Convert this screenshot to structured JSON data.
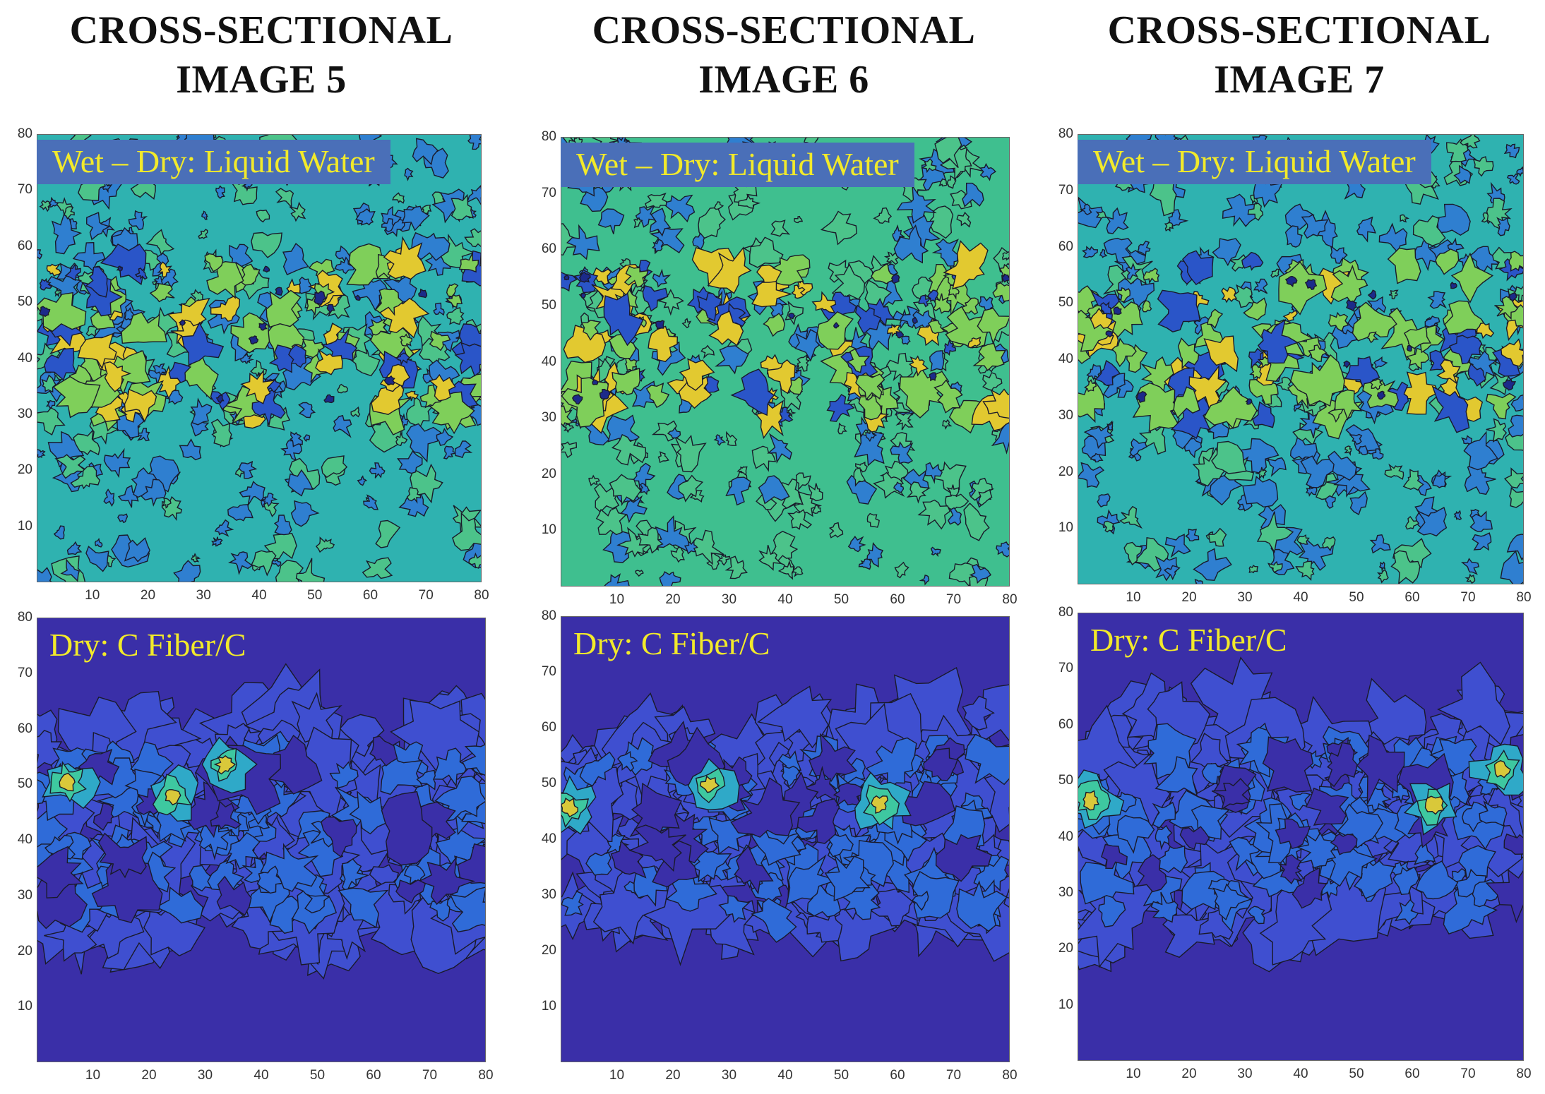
{
  "headings": [
    {
      "line1": "CROSS-SECTIONAL",
      "line2": "IMAGE 5"
    },
    {
      "line1": "CROSS-SECTIONAL",
      "line2": "IMAGE 6"
    },
    {
      "line1": "CROSS-SECTIONAL",
      "line2": "IMAGE 7"
    }
  ],
  "panel_labels": {
    "top": "Wet – Dry: Liquid Water",
    "bottom": "Dry: C Fiber/C"
  },
  "colors": {
    "label_text": "#f2ea2a",
    "label_box": "#4a6fb8",
    "water_base": "#2fb2b0",
    "water_low": "#2f7fd0",
    "water_high": "#e2c930",
    "fiber_base": "#3a2fa8",
    "fiber_mid": "#2f6bd8",
    "fiber_high": "#d9c83a"
  },
  "chart_data": [
    {
      "type": "heatmap",
      "title": "Wet – Dry: Liquid Water",
      "image": "IMAGE 5",
      "xlim": [
        0,
        80
      ],
      "ylim": [
        0,
        80
      ],
      "xticks": [
        10,
        20,
        30,
        40,
        50,
        60,
        70,
        80
      ],
      "yticks": [
        10,
        20,
        30,
        40,
        50,
        60,
        70,
        80
      ]
    },
    {
      "type": "heatmap",
      "title": "Wet – Dry: Liquid Water",
      "image": "IMAGE 6",
      "xlim": [
        0,
        80
      ],
      "ylim": [
        0,
        80
      ],
      "xticks": [
        10,
        20,
        30,
        40,
        50,
        60,
        70,
        80
      ],
      "yticks": [
        10,
        20,
        30,
        40,
        50,
        60,
        70,
        80
      ]
    },
    {
      "type": "heatmap",
      "title": "Wet – Dry: Liquid Water",
      "image": "IMAGE 7",
      "xlim": [
        0,
        80
      ],
      "ylim": [
        0,
        80
      ],
      "xticks": [
        10,
        20,
        30,
        40,
        50,
        60,
        70,
        80
      ],
      "yticks": [
        10,
        20,
        30,
        40,
        50,
        60,
        70,
        80
      ]
    },
    {
      "type": "heatmap",
      "title": "Dry: C Fiber/C",
      "image": "IMAGE 5",
      "xlim": [
        0,
        80
      ],
      "ylim": [
        0,
        80
      ],
      "xticks": [
        10,
        20,
        30,
        40,
        50,
        60,
        70,
        80
      ],
      "yticks": [
        10,
        20,
        30,
        40,
        50,
        60,
        70,
        80
      ]
    },
    {
      "type": "heatmap",
      "title": "Dry: C Fiber/C",
      "image": "IMAGE 6",
      "xlim": [
        0,
        80
      ],
      "ylim": [
        0,
        80
      ],
      "xticks": [
        10,
        20,
        30,
        40,
        50,
        60,
        70,
        80
      ],
      "yticks": [
        10,
        20,
        30,
        40,
        50,
        60,
        70,
        80
      ]
    },
    {
      "type": "heatmap",
      "title": "Dry: C Fiber/C",
      "image": "IMAGE 7",
      "xlim": [
        0,
        80
      ],
      "ylim": [
        0,
        80
      ],
      "xticks": [
        10,
        20,
        30,
        40,
        50,
        60,
        70,
        80
      ],
      "yticks": [
        10,
        20,
        30,
        40,
        50,
        60,
        70,
        80
      ]
    }
  ]
}
